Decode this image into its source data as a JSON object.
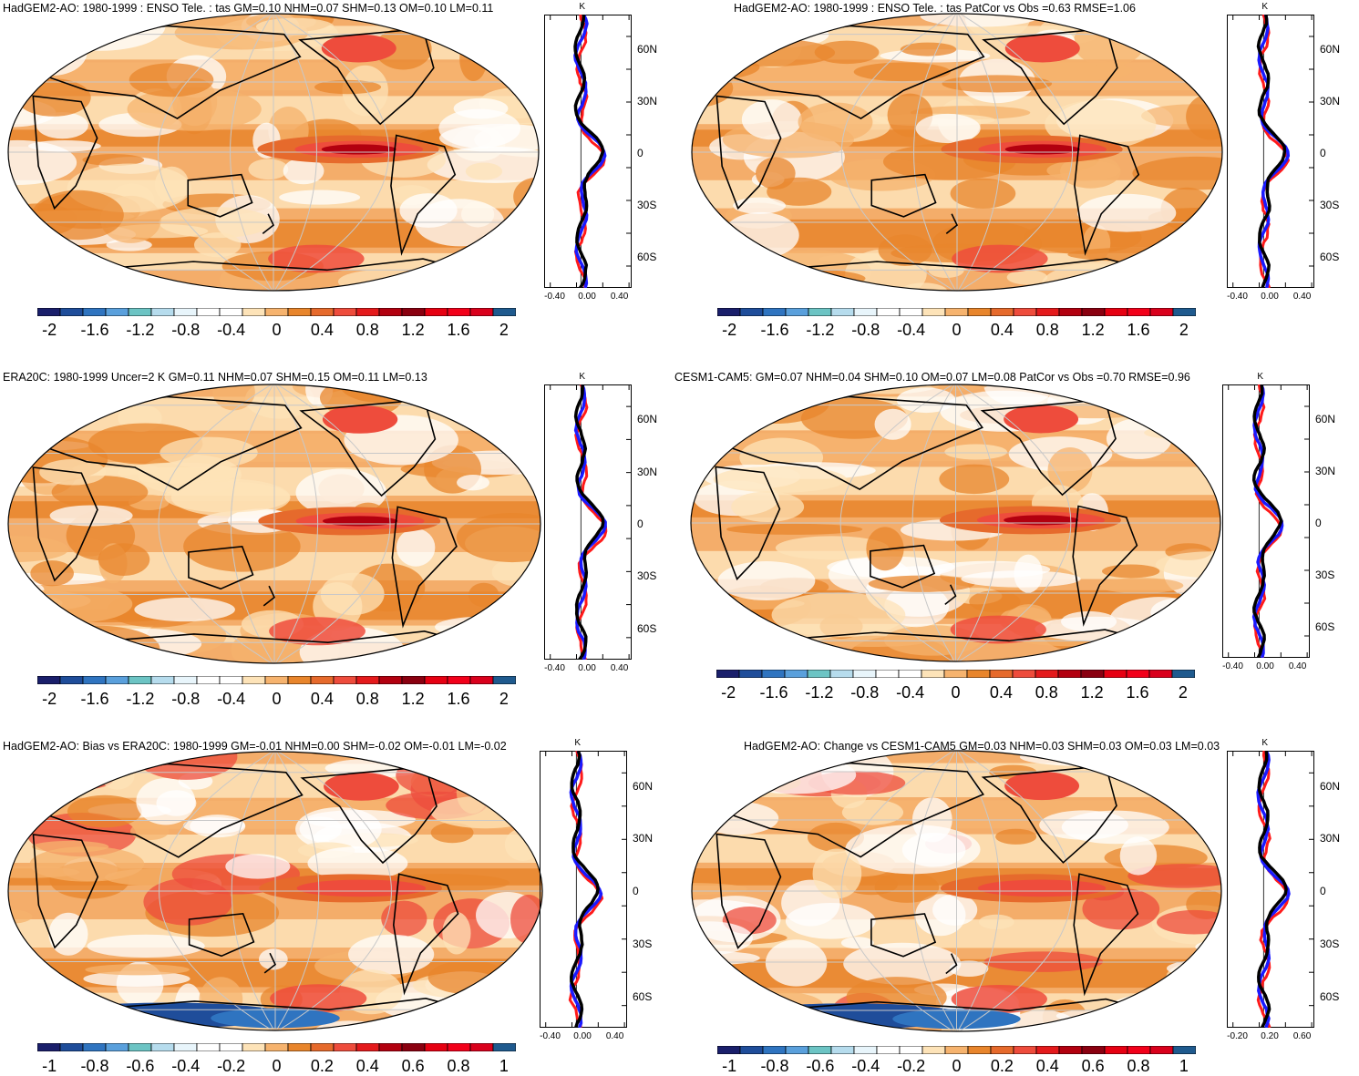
{
  "panels": [
    {
      "id": "p1",
      "title": "HadGEM2-AO: 1980-1999 : ENSO Tele. : tas GM=0.10 NHM=0.07 SHM=0.13 OM=0.10 LM=0.11",
      "colorbar": {
        "labels": [
          "-2",
          "-1.6",
          "-1.2",
          "-0.8",
          "-0.4",
          "0",
          "0.4",
          "0.8",
          "1.2",
          "1.6",
          "2"
        ]
      },
      "zonal": {
        "unit": "K",
        "lat_labels": [
          "60N",
          "30N",
          "0",
          "30S",
          "60S"
        ],
        "x_labels": [
          "-0.40",
          "0.00",
          "0.40"
        ]
      }
    },
    {
      "id": "p2",
      "title": "HadGEM2-AO: 1980-1999 : ENSO Tele. : tas PatCor vs Obs =0.63 RMSE=1.06",
      "colorbar": {
        "labels": [
          "-2",
          "-1.6",
          "-1.2",
          "-0.8",
          "-0.4",
          "0",
          "0.4",
          "0.8",
          "1.2",
          "1.6",
          "2"
        ]
      },
      "zonal": {
        "unit": "K",
        "lat_labels": [
          "60N",
          "30N",
          "0",
          "30S",
          "60S"
        ],
        "x_labels": [
          "-0.40",
          "0.00",
          "0.40"
        ]
      }
    },
    {
      "id": "p3",
      "title": "ERA20C: 1980-1999 Uncer=2 K GM=0.11 NHM=0.07 SHM=0.15 OM=0.11 LM=0.13",
      "colorbar": {
        "labels": [
          "-2",
          "-1.6",
          "-1.2",
          "-0.8",
          "-0.4",
          "0",
          "0.4",
          "0.8",
          "1.2",
          "1.6",
          "2"
        ]
      },
      "zonal": {
        "unit": "K",
        "lat_labels": [
          "60N",
          "30N",
          "0",
          "30S",
          "60S"
        ],
        "x_labels": [
          "-0.40",
          "0.00",
          "0.40"
        ]
      }
    },
    {
      "id": "p4",
      "title": "CESM1-CAM5: GM=0.07 NHM=0.04 SHM=0.10 OM=0.07 LM=0.08 PatCor vs Obs =0.70 RMSE=0.96",
      "colorbar": {
        "labels": [
          "-2",
          "-1.6",
          "-1.2",
          "-0.8",
          "-0.4",
          "0",
          "0.4",
          "0.8",
          "1.2",
          "1.6",
          "2"
        ]
      },
      "zonal": {
        "unit": "K",
        "lat_labels": [
          "60N",
          "30N",
          "0",
          "30S",
          "60S"
        ],
        "x_labels": [
          "-0.40",
          "0.00",
          "0.40"
        ]
      }
    },
    {
      "id": "p5",
      "title": "HadGEM2-AO: Bias vs ERA20C: 1980-1999 GM=-0.01 NHM=0.00 SHM=-0.02 OM=-0.01 LM=-0.02",
      "colorbar": {
        "labels": [
          "-1",
          "-0.8",
          "-0.6",
          "-0.4",
          "-0.2",
          "0",
          "0.2",
          "0.4",
          "0.6",
          "0.8",
          "1"
        ]
      },
      "zonal": {
        "unit": "K",
        "lat_labels": [
          "60N",
          "30N",
          "0",
          "30S",
          "60S"
        ],
        "x_labels": [
          "-0.40",
          "0.00",
          "0.40"
        ]
      }
    },
    {
      "id": "p6",
      "title": "HadGEM2-AO: Change vs CESM1-CAM5 GM=0.03 NHM=0.03 SHM=0.03 OM=0.03 LM=0.03",
      "colorbar": {
        "labels": [
          "-1",
          "-0.8",
          "-0.6",
          "-0.4",
          "-0.2",
          "0",
          "0.2",
          "0.4",
          "0.6",
          "0.8",
          "1"
        ]
      },
      "zonal": {
        "unit": "K",
        "lat_labels": [
          "60N",
          "30N",
          "0",
          "30S",
          "60S"
        ],
        "x_labels": [
          "-0.20",
          "0.20",
          "0.60"
        ]
      }
    }
  ],
  "colors": {
    "palette": [
      "#1a1f6b",
      "#1f4d9a",
      "#2f74c0",
      "#5aa0dc",
      "#6cc4c4",
      "#b6dced",
      "#e8f5fb",
      "#ffffff",
      "#ffffff",
      "#fde3b8",
      "#f6b36e",
      "#e8852c",
      "#e66a2c",
      "#ee4c3c",
      "#e41a1c",
      "#b2000f",
      "#8a0010",
      "#e60012",
      "#f2001a",
      "#d9001c",
      "#1f5a8e"
    ],
    "land_outline": "#000000",
    "grid": "#c8c8c8",
    "zonal_model": "#ff1a1a",
    "zonal_obs": "#1a1aff",
    "zonal_other": "#000000"
  }
}
